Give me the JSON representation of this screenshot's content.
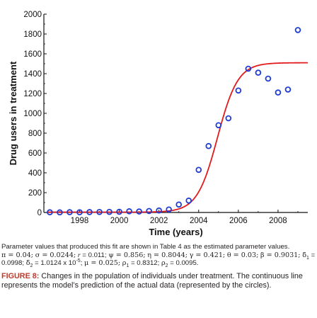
{
  "chart_data": {
    "type": "scatter",
    "xlabel": "Time (years)",
    "ylabel": "Drug users in treatment",
    "xlim": [
      1996.2,
      2009.5
    ],
    "ylim": [
      0,
      2000
    ],
    "xticks": [
      1998,
      2000,
      2002,
      2004,
      2006,
      2008
    ],
    "yticks": [
      0,
      200,
      400,
      600,
      800,
      1000,
      1200,
      1400,
      1600,
      1800,
      2000
    ],
    "grid": false,
    "series": [
      {
        "kind": "points",
        "marker": "circle",
        "color": "#1f3bd6",
        "x": [
          1996.5,
          1997,
          1997.5,
          1998,
          1998.5,
          1999,
          1999.5,
          2000,
          2000.5,
          2001,
          2001.5,
          2002,
          2002.5,
          2003,
          2003.5,
          2004,
          2004.5,
          2005,
          2005.5,
          2006,
          2006.5,
          2007,
          2007.5,
          2008,
          2008.5,
          2009
        ],
        "y": [
          2,
          1,
          3,
          2,
          4,
          5,
          6,
          7,
          12,
          10,
          15,
          20,
          30,
          80,
          120,
          430,
          670,
          880,
          950,
          1230,
          1450,
          1410,
          1350,
          1210,
          1240,
          1840
        ]
      },
      {
        "kind": "line",
        "color": "#e31a1c",
        "model": {
          "K": 1510,
          "r": 1.95,
          "t0": 2004.95,
          "base": 3
        }
      }
    ]
  },
  "text": {
    "param_note": "Parameter values that produced this fit are shown in Table 4 as the estimated parameter values.",
    "params": {
      "pi": "π = 0.04;",
      "sigma": "σ = 0.0244;",
      "r_sym": "r",
      "r_val": "= 0.011;",
      "psi": "ψ = 0.856;",
      "eta": "η = 0.8044;",
      "gamma": "γ = 0.421;",
      "theta": "θ = 0.03;",
      "beta": "β = 0.9031;",
      "delta1_sym": "δ̃",
      "delta1_sub": "1",
      "delta1_val": "= 0.0998;",
      "delta2_sym": "δ̃",
      "delta2_sub": "2",
      "delta2_val": "= 1.0124 x 10",
      "delta2_exp": "-5",
      "delta2_end": ";",
      "mu": "μ = 0.025;",
      "rho1_sym": "ρ",
      "rho1_sub": "1",
      "rho1_val": "= 0.8312;",
      "rho2_sym": "ρ",
      "rho2_sub": "2",
      "rho2_val": "= 0.0095."
    },
    "figure_label": "FIGURE 8:",
    "figure_caption": "Changes in the population of individuals under treatment. The continuous line represents the model’s prediction of the actual data (represented by the circles)."
  }
}
